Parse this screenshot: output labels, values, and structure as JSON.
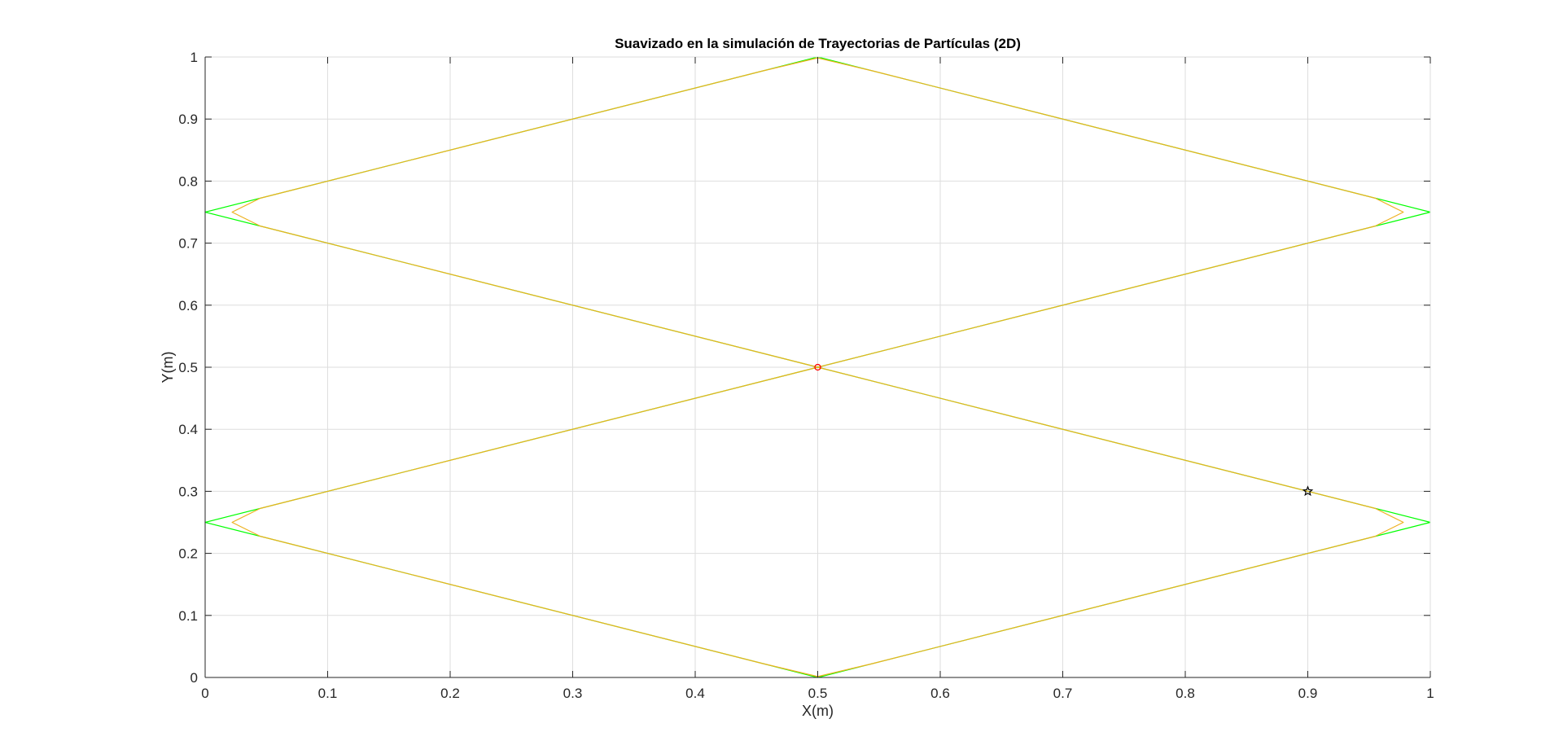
{
  "chart_data": {
    "type": "line",
    "title": "Suavizado en la simulación de Trayectorias de Partículas (2D)",
    "xlabel": "X(m)",
    "ylabel": "Y(m)",
    "xlim": [
      0,
      1
    ],
    "ylim": [
      0,
      1
    ],
    "grid": true,
    "xticks": [
      0,
      0.1,
      0.2,
      0.3,
      0.4,
      0.5,
      0.6,
      0.7,
      0.8,
      0.9,
      1
    ],
    "yticks": [
      0,
      0.1,
      0.2,
      0.3,
      0.4,
      0.5,
      0.6,
      0.7,
      0.8,
      0.9,
      1
    ],
    "xtick_labels": [
      "0",
      "0.1",
      "0.2",
      "0.3",
      "0.4",
      "0.5",
      "0.6",
      "0.7",
      "0.8",
      "0.9",
      "1"
    ],
    "ytick_labels": [
      "0",
      "0.1",
      "0.2",
      "0.3",
      "0.4",
      "0.5",
      "0.6",
      "0.7",
      "0.8",
      "0.9",
      "1"
    ],
    "series": [
      {
        "name": "reflected-path",
        "color": "#00ff00",
        "x": [
          0.5,
          1,
          0.5,
          0,
          0.5,
          1,
          0.5,
          0,
          0.5
        ],
        "y": [
          0.5,
          0.75,
          1,
          0.75,
          0.5,
          0.25,
          0,
          0.25,
          0.5
        ]
      },
      {
        "name": "smoothed-path",
        "color": "#edb120",
        "x": [
          0.5,
          0.955,
          0.978,
          0.955,
          0.545,
          0.5,
          0.455,
          0.045,
          0.022,
          0.045,
          0.5,
          0.955,
          0.978,
          0.955,
          0.545,
          0.5,
          0.455,
          0.045,
          0.022,
          0.045,
          0.5
        ],
        "y": [
          0.5,
          0.7275,
          0.75,
          0.7725,
          0.9775,
          0.9985,
          0.9775,
          0.7725,
          0.75,
          0.7275,
          0.5,
          0.2725,
          0.25,
          0.2275,
          0.0225,
          0.0015,
          0.0225,
          0.2275,
          0.25,
          0.2725,
          0.5
        ]
      }
    ],
    "markers": [
      {
        "name": "start-point",
        "shape": "circle",
        "color": "#ff0000",
        "x": 0.5,
        "y": 0.5
      },
      {
        "name": "current-point",
        "shape": "star",
        "color": "#000000",
        "x": 0.9,
        "y": 0.3
      }
    ]
  }
}
